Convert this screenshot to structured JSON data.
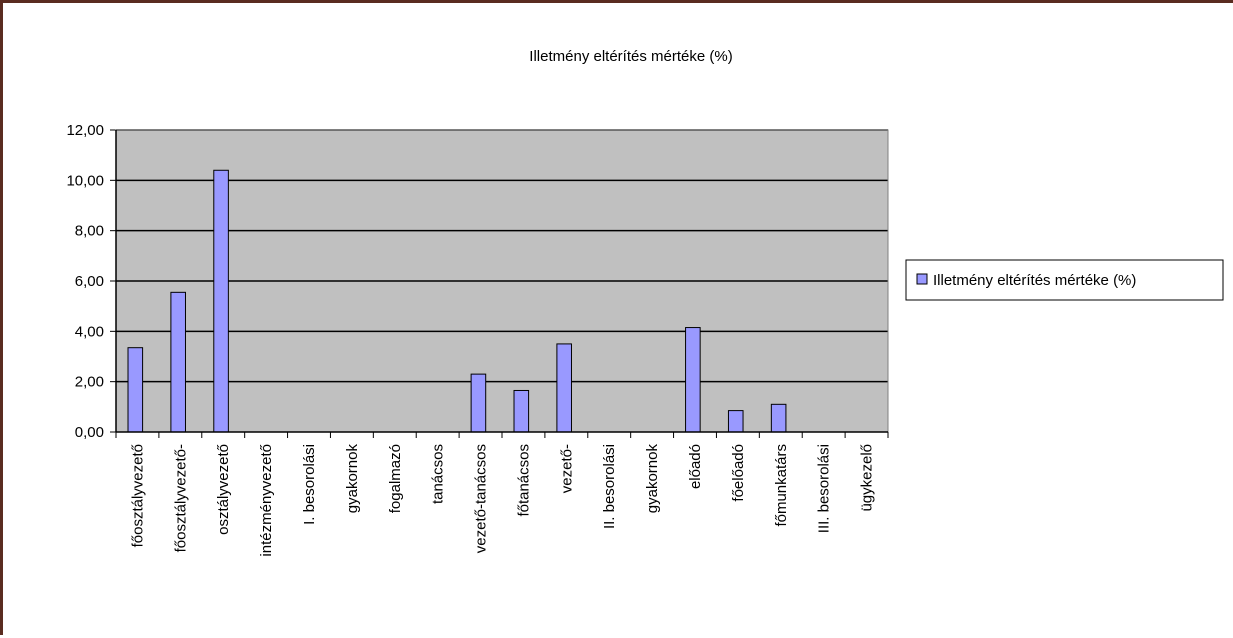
{
  "chart_data": {
    "type": "bar",
    "title": "Illetmény eltérítés mértéke (%)",
    "xlabel": "",
    "ylabel": "",
    "ylim": [
      0,
      12
    ],
    "yticks": [
      "0,00",
      "2,00",
      "4,00",
      "6,00",
      "8,00",
      "10,00",
      "12,00"
    ],
    "grid": true,
    "legend_position": "right",
    "categories": [
      "főosztályvezető",
      "főosztályvezető-",
      "osztályvezető",
      "intézményvezető",
      "I. besorolási",
      "gyakornok",
      "fogalmazó",
      "tanácsos",
      "vezető-tanácsos",
      "főtanácsos",
      "vezető-",
      "II. besorolási",
      "gyakornok",
      "előadó",
      "főelőadó",
      "főmunkatárs",
      "III. besorolási",
      "ügykezelő"
    ],
    "series": [
      {
        "name": "Illetmény eltérítés mértéke (%)",
        "color": "#9999ff",
        "values": [
          3.35,
          5.55,
          10.4,
          0,
          0,
          0,
          0,
          0,
          2.3,
          1.65,
          3.5,
          0,
          0,
          4.15,
          0.85,
          1.1,
          0,
          0
        ]
      }
    ],
    "colors": {
      "plot_background": "#c0c0c0",
      "bar_fill": "#9999ff",
      "bar_stroke": "#000000",
      "frame_border": "#5a2c20"
    }
  }
}
